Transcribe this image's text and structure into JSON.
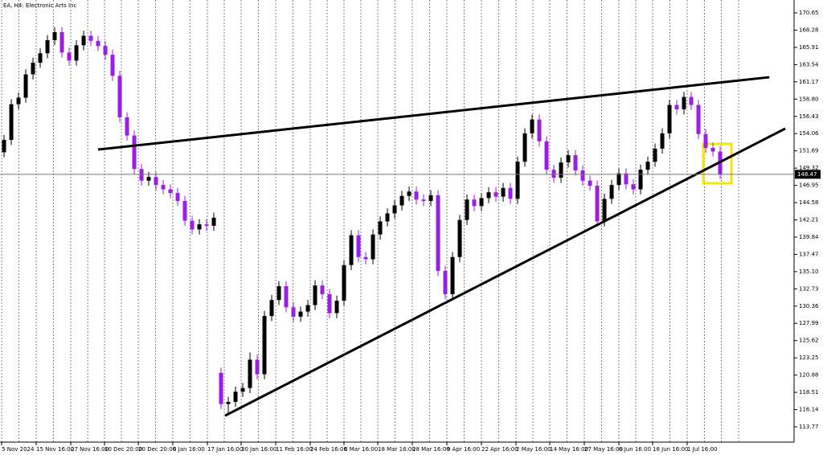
{
  "chart_data": {
    "type": "candlestick",
    "title": "EA, H4: Electronic Arts Inc",
    "up_color": "#000000",
    "down_color": "#9a1ee6",
    "open": [
      151.5,
      153.2,
      158.1,
      159.0,
      162.2,
      163.8,
      165.1,
      166.9,
      168.0,
      165.2,
      164.1,
      166.2,
      167.5,
      166.8,
      166.1,
      164.9,
      162.0,
      156.3,
      153.8,
      149.2,
      147.6,
      148.1,
      147.0,
      146.4,
      145.9,
      144.8,
      142.1,
      140.9,
      141.6,
      141.4,
      121.2,
      116.9,
      117.2,
      118.6,
      119.1,
      123.0,
      121.0,
      129.0,
      131.2,
      133.1,
      130.2,
      128.9,
      129.6,
      130.5,
      133.2,
      132.0,
      129.4,
      131.1,
      136.0,
      140.1,
      137.1,
      136.8,
      140.2,
      142.0,
      143.1,
      144.2,
      145.5,
      146.1,
      145.0,
      144.8,
      145.6,
      135.2,
      132.0,
      137.1,
      142.2,
      145.0,
      144.1,
      145.2,
      146.0,
      145.4,
      146.6,
      145.1,
      150.2,
      154.1,
      156.0,
      153.0,
      149.1,
      148.0,
      150.1,
      151.1,
      149.0,
      147.6,
      146.9,
      142.0,
      145.1,
      147.0,
      148.6,
      147.1,
      146.4,
      149.1,
      150.2,
      152.0,
      154.1,
      158.0,
      157.4,
      159.1,
      158.0,
      154.0,
      152.1,
      151.6
    ],
    "high": [
      153.9,
      158.8,
      159.7,
      162.9,
      164.5,
      165.8,
      167.6,
      168.7,
      168.7,
      165.9,
      166.9,
      168.2,
      168.2,
      167.5,
      166.8,
      165.6,
      162.7,
      157.0,
      154.5,
      149.9,
      148.8,
      148.8,
      147.7,
      147.1,
      146.6,
      145.5,
      142.8,
      142.3,
      142.3,
      143.2,
      121.9,
      117.9,
      119.3,
      119.8,
      124.0,
      123.7,
      129.7,
      131.9,
      133.8,
      133.8,
      130.9,
      130.3,
      131.2,
      133.9,
      133.9,
      132.7,
      131.8,
      136.7,
      140.8,
      140.8,
      137.8,
      140.9,
      142.7,
      143.8,
      144.9,
      146.2,
      146.8,
      146.8,
      145.7,
      146.3,
      146.3,
      135.9,
      137.8,
      142.9,
      145.7,
      145.7,
      145.9,
      146.7,
      146.7,
      147.3,
      147.3,
      150.9,
      154.8,
      156.7,
      156.7,
      153.7,
      149.8,
      150.8,
      151.8,
      151.8,
      149.7,
      148.3,
      147.6,
      145.8,
      147.7,
      149.3,
      149.3,
      147.8,
      149.8,
      150.9,
      152.7,
      154.8,
      158.7,
      158.7,
      159.8,
      159.8,
      158.7,
      154.7,
      152.8,
      152.3
    ],
    "low": [
      150.8,
      152.5,
      157.4,
      158.3,
      161.5,
      163.1,
      164.4,
      166.2,
      164.5,
      163.4,
      163.4,
      165.5,
      166.1,
      165.4,
      164.2,
      161.3,
      155.6,
      153.1,
      148.5,
      146.9,
      146.9,
      146.3,
      145.7,
      145.2,
      144.1,
      141.4,
      140.2,
      140.2,
      140.7,
      140.7,
      116.2,
      115.6,
      116.5,
      117.9,
      118.4,
      120.3,
      120.3,
      128.3,
      130.5,
      129.5,
      128.2,
      128.2,
      128.9,
      129.8,
      131.3,
      128.7,
      128.7,
      130.4,
      135.3,
      136.4,
      136.1,
      136.1,
      139.5,
      141.3,
      142.4,
      143.5,
      144.8,
      144.3,
      144.1,
      144.1,
      134.5,
      131.3,
      131.3,
      136.4,
      141.5,
      143.4,
      143.4,
      144.5,
      144.7,
      144.7,
      144.4,
      144.4,
      149.5,
      153.4,
      152.3,
      148.4,
      147.3,
      147.3,
      149.4,
      148.3,
      146.9,
      146.2,
      141.3,
      141.3,
      144.4,
      146.3,
      146.4,
      145.7,
      145.7,
      148.4,
      149.5,
      151.3,
      153.4,
      156.7,
      156.7,
      157.3,
      153.3,
      151.4,
      150.9,
      147.8
    ],
    "close": [
      153.2,
      158.1,
      159.0,
      162.2,
      163.8,
      165.1,
      166.9,
      168.0,
      165.2,
      164.1,
      166.2,
      167.5,
      166.8,
      166.1,
      164.9,
      162.0,
      156.3,
      153.8,
      149.2,
      147.6,
      148.1,
      147.0,
      146.4,
      145.9,
      144.8,
      142.1,
      140.9,
      141.6,
      141.4,
      142.5,
      116.9,
      117.2,
      118.6,
      119.1,
      123.0,
      121.0,
      129.0,
      131.2,
      133.1,
      130.2,
      128.9,
      129.6,
      130.5,
      133.2,
      132.0,
      129.4,
      131.1,
      136.0,
      140.1,
      137.1,
      136.8,
      140.2,
      142.0,
      143.1,
      144.2,
      145.5,
      146.1,
      145.0,
      144.8,
      145.6,
      135.2,
      132.0,
      137.1,
      142.2,
      145.0,
      144.1,
      145.2,
      146.0,
      145.4,
      146.6,
      145.1,
      150.2,
      154.1,
      156.0,
      153.0,
      149.1,
      148.0,
      150.1,
      151.1,
      149.0,
      147.6,
      146.9,
      142.0,
      145.1,
      147.0,
      148.6,
      147.1,
      146.4,
      149.1,
      150.2,
      152.0,
      154.1,
      158.0,
      157.4,
      159.1,
      158.0,
      154.0,
      152.1,
      151.6,
      148.47
    ],
    "xlim": [
      -0.56,
      109.22
    ],
    "ylim": [
      111.67,
      172.42
    ],
    "yticks": [
      113.77,
      116.14,
      118.51,
      120.88,
      123.25,
      125.62,
      127.99,
      130.36,
      132.73,
      {
        "value": 135.1,
        "label": "135.10"
      },
      137.47,
      139.84,
      142.21,
      144.58,
      146.95,
      149.32,
      151.69,
      154.06,
      156.43,
      {
        "value": 158.8,
        "label": "158.80"
      },
      161.17,
      163.54,
      165.91,
      168.28,
      170.65
    ],
    "xticks": [
      {
        "value": -0.33,
        "label": "5 Nov 2024"
      },
      {
        "value": 4.44,
        "label": "15 Nov 16:00"
      },
      {
        "value": 9.22,
        "label": "27 Nov 16:00"
      },
      {
        "value": 13.89,
        "label": "10 Dec 20:00"
      },
      {
        "value": 18.56,
        "label": "20 Dec 20:00"
      },
      {
        "value": 23.33,
        "label": "6 Jan 16:00"
      },
      {
        "value": 28.11,
        "label": "17 Jan 16:00"
      },
      {
        "value": 32.78,
        "label": "30 Jan 16:00"
      },
      {
        "value": 37.56,
        "label": "11 Feb 16:00"
      },
      {
        "value": 42.33,
        "label": "24 Feb 16:00"
      },
      {
        "value": 47,
        "label": "6 Mar 16:00"
      },
      {
        "value": 51.67,
        "label": "18 Mar 16:00"
      },
      {
        "value": 56.44,
        "label": "28 Mar 16:00"
      },
      {
        "value": 61.22,
        "label": "9 Apr 16:00"
      },
      {
        "value": 66,
        "label": "22 Apr 16:00"
      },
      {
        "value": 70.78,
        "label": "2 May 16:00"
      },
      {
        "value": 75.44,
        "label": "14 May 16:00"
      },
      {
        "value": 80.22,
        "label": "27 May 16:00"
      },
      {
        "value": 85,
        "label": "6 Jun 16:00"
      },
      {
        "value": 89.67,
        "label": "18 Jun 16:00"
      },
      {
        "value": 94.44,
        "label": "1 Jul 16:00"
      }
    ],
    "xgrid": [
      2.06,
      6.83,
      11.56,
      16.22,
      20.94,
      25.72,
      30.44,
      35.17,
      39.94,
      44.67,
      49.33,
      54.06,
      58.83,
      63.61,
      68.39,
      73.11,
      77.83,
      82.61,
      87.33,
      92.06,
      96.83,
      99.17,
      101.56
    ],
    "grid": true,
    "last_price": 148.47,
    "trendlines": [
      {
        "x": [
          13,
          105.8
        ],
        "y": [
          151.87,
          161.81
        ]
      },
      {
        "x": [
          30.56,
          108
        ],
        "y": [
          115.31,
          154.75
        ]
      }
    ],
    "highlight": {
      "x": [
        96.67,
        100.56
      ],
      "y": [
        147.24,
        152.65
      ],
      "color": "#f5e50a"
    }
  }
}
